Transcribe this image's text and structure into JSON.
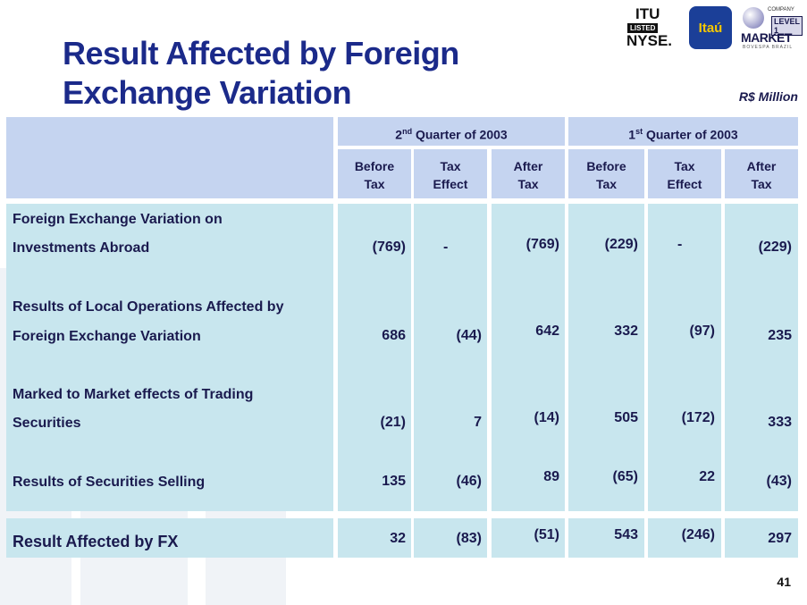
{
  "title_line1": "Result Affected by Foreign",
  "title_line2": "Exchange Variation",
  "unit": "R$ Million",
  "logos": {
    "itu": "ITU",
    "listed": "LISTED",
    "nyse": "NYSE.",
    "itau": "Itaú",
    "company": "COMPANY",
    "level": "LEVEL 1",
    "market": "MARKET",
    "bovespa": "BOVESPA BRAZIL"
  },
  "quarters": {
    "q2": {
      "prefix": "2",
      "sup": "nd",
      "rest": " Quarter of 2003"
    },
    "q1": {
      "prefix": "1",
      "sup": "st",
      "rest": " Quarter of 2003"
    }
  },
  "columns": [
    {
      "line1": "Before",
      "line2": "Tax"
    },
    {
      "line1": "Tax",
      "line2": "Effect"
    },
    {
      "line1": "After",
      "line2": "Tax"
    },
    {
      "line1": "Before",
      "line2": "Tax"
    },
    {
      "line1": "Tax",
      "line2": "Effect"
    },
    {
      "line1": "After",
      "line2": "Tax"
    }
  ],
  "rows": [
    {
      "label1": "Foreign Exchange Variation on",
      "label2": "Investments Abroad",
      "values": [
        "(769)",
        "-",
        "(769)",
        "(229)",
        "-",
        "(229)"
      ]
    },
    {
      "label1": "Results of Local Operations Affected by",
      "label2": "Foreign Exchange Variation",
      "values": [
        "686",
        "(44)",
        "642",
        "332",
        "(97)",
        "235"
      ]
    },
    {
      "label1": "Marked to Market effects of Trading",
      "label2": "Securities",
      "values": [
        "(21)",
        "7",
        "(14)",
        "505",
        "(172)",
        "333"
      ]
    },
    {
      "label1": "Results of Securities Selling",
      "label2": "",
      "values": [
        "135",
        "(46)",
        "89",
        "(65)",
        "22",
        "(43)"
      ]
    }
  ],
  "total": {
    "label": "Result Affected by FX",
    "values": [
      "32",
      "(83)",
      "(51)",
      "543",
      "(246)",
      "297"
    ]
  },
  "page_number": "41"
}
